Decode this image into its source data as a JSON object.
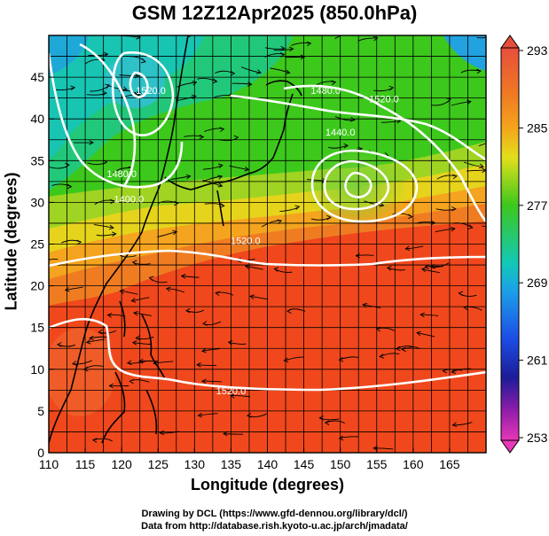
{
  "title": "GSM 12Z12Apr2025 (850.0hPa)",
  "xlabel": "Longitude (degrees)",
  "ylabel": "Latitude  (degrees)",
  "credits": [
    "Drawing by DCL (https://www.gfd-dennou.org/library/dcl/)",
    "Data from http://database.rish.kyoto-u.ac.jp/arch/jmadata/"
  ],
  "axes": {
    "x_ticks": [
      110,
      115,
      120,
      125,
      130,
      135,
      140,
      145,
      150,
      155,
      160,
      165
    ],
    "y_ticks": [
      0,
      5,
      10,
      15,
      20,
      25,
      30,
      35,
      40,
      45
    ],
    "xlim": [
      110,
      170
    ],
    "ylim": [
      0,
      50
    ]
  },
  "colorbar": {
    "labels": [
      "293",
      "285",
      "277",
      "269",
      "261",
      "253"
    ],
    "range": [
      253,
      293
    ]
  },
  "contour_labels": [
    {
      "text": "1520.0",
      "lon": 137,
      "lat": 25
    },
    {
      "text": "1520.0",
      "lon": 135,
      "lat": 7
    },
    {
      "text": "1440.0",
      "lon": 150,
      "lat": 38
    },
    {
      "text": "1480.0",
      "lon": 148,
      "lat": 43
    },
    {
      "text": "1520.0",
      "lon": 156,
      "lat": 42
    },
    {
      "text": "1520.0",
      "lon": 124,
      "lat": 43
    },
    {
      "text": "1480.0",
      "lon": 120,
      "lat": 33
    },
    {
      "text": "1400.0",
      "lon": 121,
      "lat": 30
    }
  ],
  "colors": {
    "cb_top": "#e84e3c",
    "cb_orange": "#f59b1c",
    "cb_yellow": "#e2df1c",
    "cb_green": "#3dc81c",
    "cb_cyan": "#12c8b8",
    "cb_lightblue": "#1ca0e8",
    "cb_blue": "#1c4ee6",
    "cb_darkblue": "#1c1c98",
    "cb_purple": "#8a1ca8",
    "cb_bottom": "#e838b8"
  }
}
